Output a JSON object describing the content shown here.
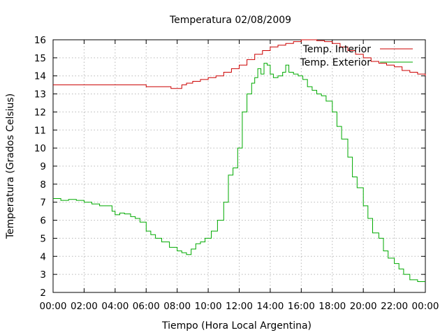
{
  "chart_data": {
    "type": "line",
    "title": "Temperatura 02/08/2009",
    "xlabel": "Tiempo (Hora Local Argentina)",
    "ylabel": "Temperatura (Grados Celsius)",
    "xlim": [
      0,
      24
    ],
    "ylim": [
      2,
      16
    ],
    "x_tick_labels": [
      "00:00",
      "02:00",
      "04:00",
      "06:00",
      "08:00",
      "10:00",
      "12:00",
      "14:00",
      "16:00",
      "18:00",
      "20:00",
      "22:00",
      "00:00"
    ],
    "y_ticks": [
      2,
      3,
      4,
      5,
      6,
      7,
      8,
      9,
      10,
      11,
      12,
      13,
      14,
      15,
      16
    ],
    "grid": true,
    "legend_position": "top-right",
    "series": [
      {
        "name": "Temp. Interior",
        "color": "#cc0000",
        "x": [
          0,
          1,
          2,
          3,
          4,
          5,
          5.9,
          6.0,
          6.5,
          7.0,
          7.5,
          7.6,
          8.0,
          8.3,
          8.6,
          9.0,
          9.5,
          10.0,
          10.5,
          11.0,
          11.5,
          12.0,
          12.5,
          13.0,
          13.5,
          14.0,
          14.5,
          15.0,
          15.5,
          16.0,
          16.5,
          17.0,
          17.5,
          18.0,
          18.5,
          19.0,
          19.5,
          20.0,
          20.5,
          21.0,
          21.5,
          22.0,
          22.5,
          23.0,
          23.5,
          24.0
        ],
        "y": [
          13.5,
          13.5,
          13.5,
          13.5,
          13.5,
          13.5,
          13.5,
          13.4,
          13.4,
          13.4,
          13.4,
          13.3,
          13.3,
          13.5,
          13.6,
          13.7,
          13.8,
          13.9,
          14.0,
          14.2,
          14.4,
          14.6,
          14.9,
          15.2,
          15.4,
          15.6,
          15.7,
          15.8,
          15.9,
          16.0,
          16.0,
          15.95,
          15.9,
          15.8,
          15.6,
          15.4,
          15.2,
          15.0,
          14.8,
          14.7,
          14.6,
          14.5,
          14.3,
          14.2,
          14.1,
          14.0
        ]
      },
      {
        "name": "Temp. Exterior",
        "color": "#00aa00",
        "x": [
          0,
          0.5,
          1,
          1.5,
          2,
          2.5,
          3,
          3.5,
          3.8,
          4,
          4.3,
          4.6,
          5,
          5.3,
          5.6,
          6,
          6.3,
          6.6,
          7,
          7.5,
          8,
          8.3,
          8.6,
          8.9,
          9.2,
          9.5,
          9.8,
          10.2,
          10.6,
          11,
          11.3,
          11.6,
          11.9,
          12.2,
          12.5,
          12.8,
          13,
          13.2,
          13.4,
          13.6,
          13.8,
          14,
          14.2,
          14.5,
          14.8,
          15,
          15.2,
          15.5,
          15.8,
          16.1,
          16.4,
          16.7,
          17,
          17.3,
          17.6,
          18,
          18.3,
          18.6,
          19,
          19.3,
          19.6,
          20,
          20.3,
          20.6,
          21,
          21.3,
          21.6,
          22,
          22.3,
          22.6,
          23,
          23.5,
          24
        ],
        "y": [
          7.2,
          7.1,
          7.15,
          7.1,
          7.0,
          6.9,
          6.8,
          6.8,
          6.5,
          6.3,
          6.4,
          6.35,
          6.2,
          6.1,
          5.9,
          5.4,
          5.2,
          5.0,
          4.8,
          4.5,
          4.3,
          4.2,
          4.1,
          4.4,
          4.7,
          4.8,
          5.0,
          5.4,
          6.0,
          7.0,
          8.5,
          8.9,
          10.0,
          12.0,
          13.0,
          13.6,
          13.9,
          14.4,
          14.1,
          14.7,
          14.6,
          14.1,
          13.9,
          14.0,
          14.2,
          14.6,
          14.2,
          14.1,
          14.0,
          13.8,
          13.4,
          13.2,
          13.0,
          12.9,
          12.6,
          12.0,
          11.2,
          10.5,
          9.5,
          8.4,
          7.8,
          6.8,
          6.1,
          5.3,
          5.0,
          4.3,
          3.9,
          3.6,
          3.3,
          3.0,
          2.7,
          2.6,
          2.6
        ]
      }
    ]
  }
}
